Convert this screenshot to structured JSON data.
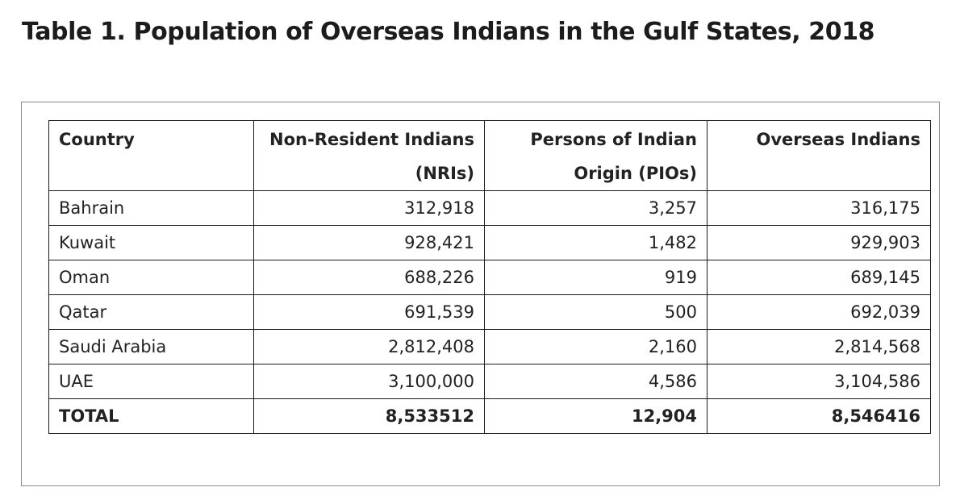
{
  "title": "Table 1. Population of Overseas Indians in the Gulf States, 2018",
  "table": {
    "headers": {
      "country": "Country",
      "nri_line1": "Non-Resident Indians",
      "nri_line2": "(NRIs)",
      "pio_line1": "Persons of Indian",
      "pio_line2": "Origin (PIOs)",
      "overseas": "Overseas Indians"
    },
    "rows": [
      {
        "country": "Bahrain",
        "nri": "312,918",
        "pio": "3,257",
        "overseas": "316,175"
      },
      {
        "country": "Kuwait",
        "nri": "928,421",
        "pio": "1,482",
        "overseas": "929,903"
      },
      {
        "country": "Oman",
        "nri": "688,226",
        "pio": "919",
        "overseas": "689,145"
      },
      {
        "country": "Qatar",
        "nri": "691,539",
        "pio": "500",
        "overseas": "692,039"
      },
      {
        "country": "Saudi Arabia",
        "nri": "2,812,408",
        "pio": "2,160",
        "overseas": "2,814,568"
      },
      {
        "country": "UAE",
        "nri": "3,100,000",
        "pio": "4,586",
        "overseas": "3,104,586"
      }
    ],
    "total": {
      "country": "TOTAL",
      "nri": "8,533512",
      "pio": "12,904",
      "overseas": "8,546416"
    }
  }
}
